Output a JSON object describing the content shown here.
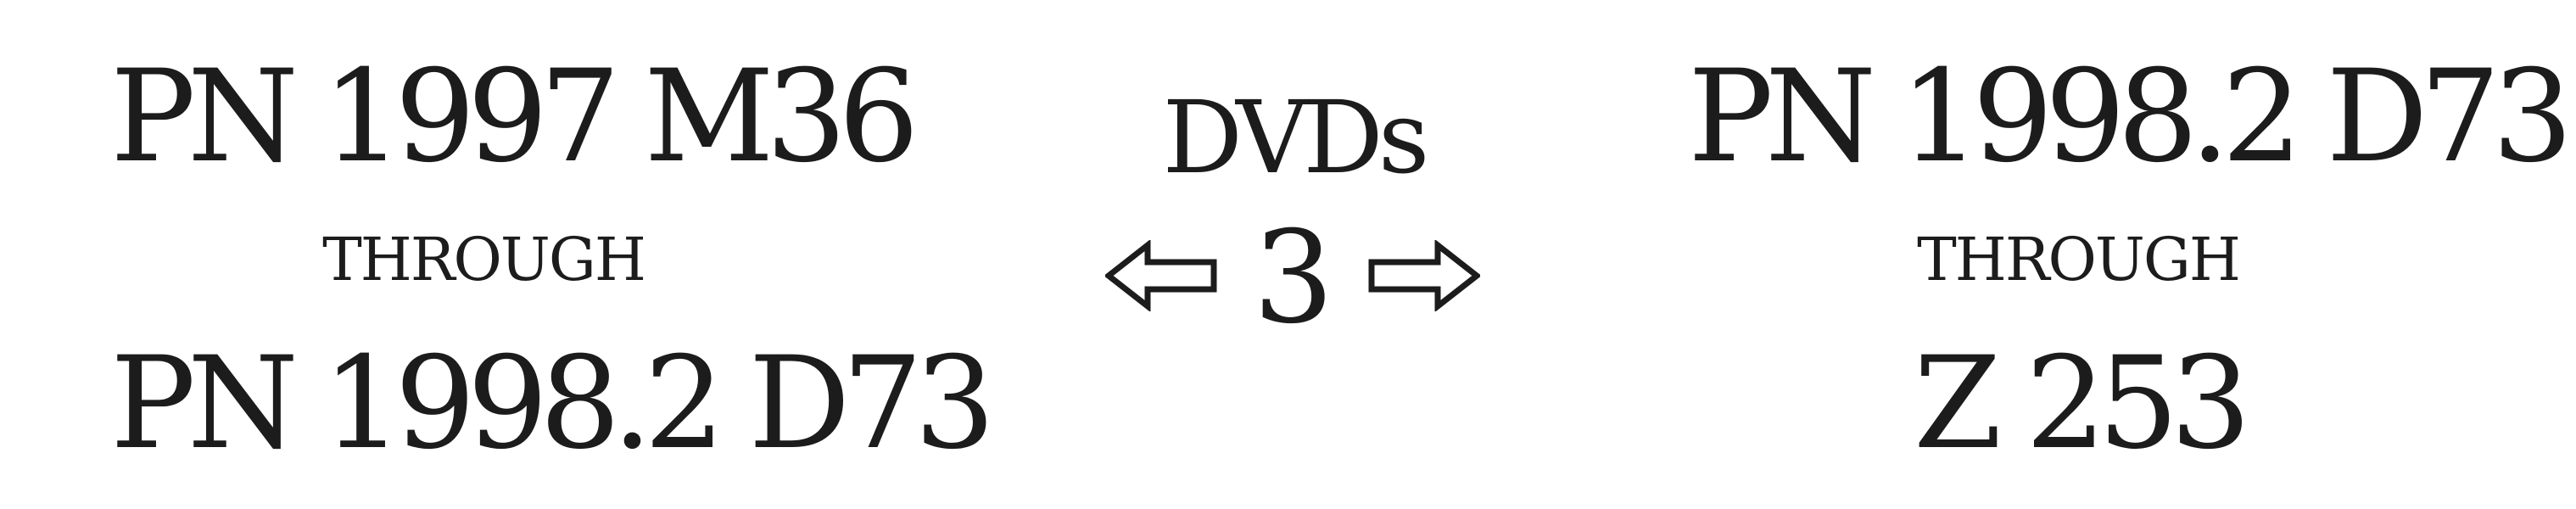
{
  "left_range": {
    "start": "PN 1997 M36",
    "through": "THROUGH",
    "end": "PN 1998.2 D73"
  },
  "center": {
    "collection": "DVDs",
    "floor": "3"
  },
  "right_range": {
    "start": "PN 1998.2 D73",
    "through": "THROUGH",
    "end": "Z 253"
  },
  "icons": {
    "left_arrow": "left-outline-arrow-icon",
    "right_arrow": "right-outline-arrow-icon"
  },
  "colors": {
    "text": "#1c1c1c",
    "background": "#ffffff"
  }
}
